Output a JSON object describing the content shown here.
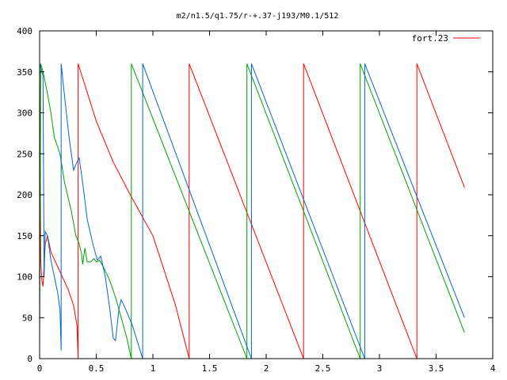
{
  "chart_data": {
    "type": "line",
    "title": "m2/n1.5/q1.75/r-+.37-j193/M0.1/512",
    "xlabel": "",
    "ylabel": "",
    "xlim": [
      0,
      4
    ],
    "ylim": [
      0,
      400
    ],
    "xticks": [
      "0",
      "0.5",
      "1",
      "1.5",
      "2",
      "2.5",
      "3",
      "3.5",
      "4"
    ],
    "yticks": [
      "0",
      "50",
      "100",
      "150",
      "200",
      "250",
      "300",
      "350",
      "400"
    ],
    "grid": false,
    "legend_position": "top-right",
    "legend": [
      {
        "label": "fort.23",
        "color": "#ff0000"
      }
    ],
    "series": [
      {
        "name": "fort.23",
        "color": "#ff0000",
        "points": [
          [
            0.0,
            0
          ],
          [
            0.0,
            360
          ],
          [
            0.01,
            120
          ],
          [
            0.02,
            95
          ],
          [
            0.03,
            88
          ],
          [
            0.05,
            140
          ],
          [
            0.07,
            150
          ],
          [
            0.1,
            130
          ],
          [
            0.15,
            115
          ],
          [
            0.2,
            100
          ],
          [
            0.25,
            85
          ],
          [
            0.3,
            65
          ],
          [
            0.33,
            40
          ],
          [
            0.34,
            0
          ],
          [
            0.34,
            360
          ],
          [
            0.5,
            290
          ],
          [
            0.65,
            240
          ],
          [
            0.8,
            200
          ],
          [
            1.0,
            150
          ],
          [
            1.2,
            65
          ],
          [
            1.32,
            0
          ],
          [
            1.32,
            360
          ],
          [
            2.33,
            0
          ],
          [
            2.33,
            360
          ],
          [
            3.33,
            0
          ],
          [
            3.33,
            360
          ],
          [
            3.75,
            209
          ]
        ]
      },
      {
        "color": "#00a000",
        "points": [
          [
            0.0,
            20
          ],
          [
            0.01,
            360
          ],
          [
            0.03,
            350
          ],
          [
            0.06,
            330
          ],
          [
            0.1,
            300
          ],
          [
            0.13,
            270
          ],
          [
            0.18,
            250
          ],
          [
            0.22,
            215
          ],
          [
            0.28,
            180
          ],
          [
            0.32,
            150
          ],
          [
            0.35,
            140
          ],
          [
            0.37,
            128
          ],
          [
            0.38,
            115
          ],
          [
            0.4,
            135
          ],
          [
            0.42,
            118
          ],
          [
            0.45,
            118
          ],
          [
            0.48,
            122
          ],
          [
            0.5,
            118
          ],
          [
            0.53,
            120
          ],
          [
            0.57,
            110
          ],
          [
            0.62,
            95
          ],
          [
            0.67,
            75
          ],
          [
            0.72,
            50
          ],
          [
            0.77,
            25
          ],
          [
            0.81,
            0
          ],
          [
            0.81,
            360
          ],
          [
            1.83,
            0
          ],
          [
            1.83,
            360
          ],
          [
            2.83,
            0
          ],
          [
            2.83,
            360
          ],
          [
            3.75,
            32
          ]
        ]
      },
      {
        "color": "#0066cc",
        "points": [
          [
            0.0,
            360
          ],
          [
            0.02,
            350
          ],
          [
            0.03,
            345
          ],
          [
            0.04,
            100
          ],
          [
            0.05,
            155
          ],
          [
            0.07,
            150
          ],
          [
            0.1,
            120
          ],
          [
            0.13,
            100
          ],
          [
            0.16,
            80
          ],
          [
            0.18,
            60
          ],
          [
            0.19,
            10
          ],
          [
            0.19,
            360
          ],
          [
            0.22,
            320
          ],
          [
            0.26,
            270
          ],
          [
            0.3,
            230
          ],
          [
            0.33,
            240
          ],
          [
            0.35,
            245
          ],
          [
            0.38,
            215
          ],
          [
            0.42,
            170
          ],
          [
            0.47,
            140
          ],
          [
            0.51,
            120
          ],
          [
            0.54,
            125
          ],
          [
            0.58,
            100
          ],
          [
            0.62,
            60
          ],
          [
            0.65,
            25
          ],
          [
            0.67,
            22
          ],
          [
            0.7,
            60
          ],
          [
            0.72,
            72
          ],
          [
            0.76,
            60
          ],
          [
            0.82,
            40
          ],
          [
            0.91,
            0
          ],
          [
            0.91,
            360
          ],
          [
            1.87,
            0
          ],
          [
            1.87,
            360
          ],
          [
            2.87,
            0
          ],
          [
            2.87,
            360
          ],
          [
            3.75,
            50
          ]
        ]
      }
    ]
  }
}
